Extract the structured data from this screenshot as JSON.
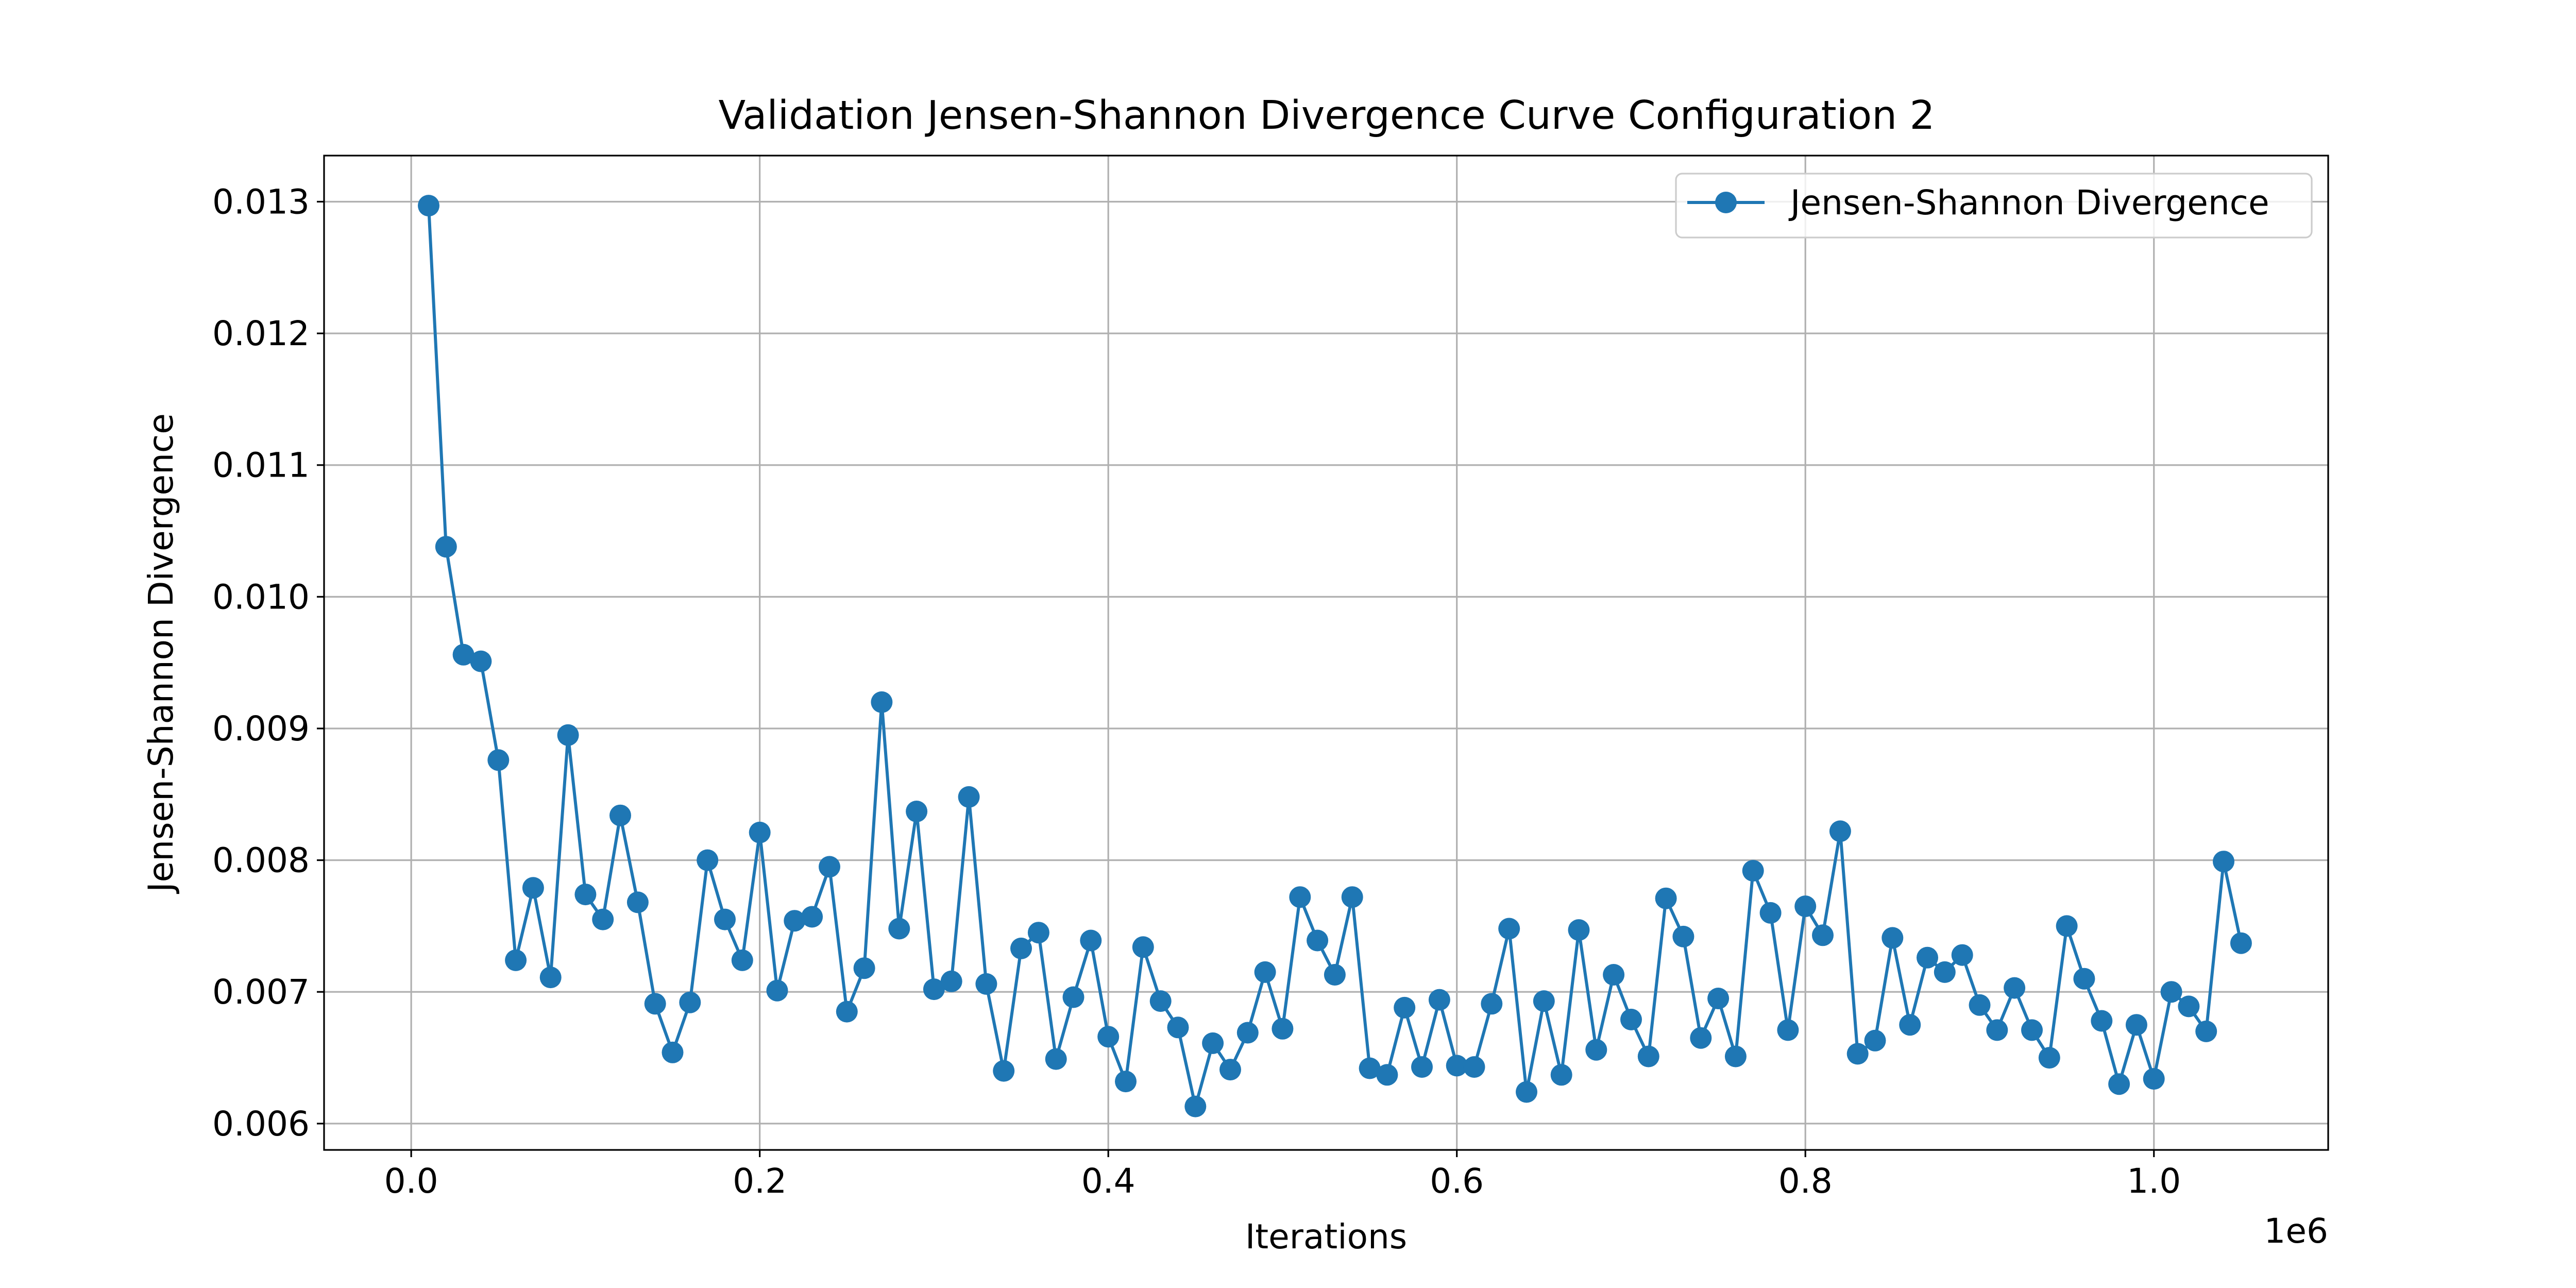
{
  "chart_data": {
    "type": "line",
    "title": "Validation Jensen-Shannon Divergence Curve Configuration 2",
    "xlabel": "Iterations",
    "ylabel": "Jensen-Shannon Divergence",
    "x_offset_label": "1e6",
    "xlim": [
      -50000,
      1100000
    ],
    "ylim": [
      0.0058,
      0.01335
    ],
    "x_ticks": [
      0.0,
      200000,
      400000,
      600000,
      800000,
      1000000
    ],
    "x_tick_labels": [
      "0.0",
      "0.2",
      "0.4",
      "0.6",
      "0.8",
      "1.0"
    ],
    "y_ticks": [
      0.006,
      0.007,
      0.008,
      0.009,
      0.01,
      0.011,
      0.012,
      0.013
    ],
    "y_tick_labels": [
      "0.006",
      "0.007",
      "0.008",
      "0.009",
      "0.010",
      "0.011",
      "0.012",
      "0.013"
    ],
    "grid": true,
    "legend_position": "top-right",
    "colors": {
      "series": "#1f77b4",
      "grid": "#b0b0b0",
      "frame": "#000000"
    },
    "series": [
      {
        "name": "Jensen-Shannon Divergence",
        "x": [
          10000,
          20000,
          30000,
          40000,
          50000,
          60000,
          70000,
          80000,
          90000,
          100000,
          110000,
          120000,
          130000,
          140000,
          150000,
          160000,
          170000,
          180000,
          190000,
          200000,
          210000,
          220000,
          230000,
          240000,
          250000,
          260000,
          270000,
          280000,
          290000,
          300000,
          310000,
          320000,
          330000,
          340000,
          350000,
          360000,
          370000,
          380000,
          390000,
          400000,
          410000,
          420000,
          430000,
          440000,
          450000,
          460000,
          470000,
          480000,
          490000,
          500000,
          510000,
          520000,
          530000,
          540000,
          550000,
          560000,
          570000,
          580000,
          590000,
          600000,
          610000,
          620000,
          630000,
          640000,
          650000,
          660000,
          670000,
          680000,
          690000,
          700000,
          710000,
          720000,
          730000,
          740000,
          750000,
          760000,
          770000,
          780000,
          790000,
          800000,
          810000,
          820000,
          830000,
          840000,
          850000,
          860000,
          870000,
          880000,
          890000,
          900000,
          910000,
          920000,
          930000,
          940000,
          950000,
          960000,
          970000,
          980000,
          990000,
          1000000,
          1010000,
          1020000,
          1030000,
          1040000,
          1050000
        ],
        "y": [
          0.01297,
          0.01038,
          0.00956,
          0.00951,
          0.00876,
          0.00724,
          0.00779,
          0.00711,
          0.00895,
          0.00774,
          0.00755,
          0.00834,
          0.00768,
          0.00691,
          0.00654,
          0.00692,
          0.008,
          0.00755,
          0.00724,
          0.00821,
          0.00701,
          0.00754,
          0.00757,
          0.00795,
          0.00685,
          0.00718,
          0.0092,
          0.00748,
          0.00837,
          0.00702,
          0.00708,
          0.00848,
          0.00706,
          0.0064,
          0.00733,
          0.00745,
          0.00649,
          0.00696,
          0.00739,
          0.00666,
          0.00632,
          0.00734,
          0.00693,
          0.00673,
          0.00613,
          0.00661,
          0.00641,
          0.00669,
          0.00715,
          0.00672,
          0.00772,
          0.00739,
          0.00713,
          0.00772,
          0.00642,
          0.00637,
          0.00688,
          0.00643,
          0.00694,
          0.00644,
          0.00643,
          0.00691,
          0.00748,
          0.00624,
          0.00693,
          0.00637,
          0.00747,
          0.00656,
          0.00713,
          0.00679,
          0.00651,
          0.00771,
          0.00742,
          0.00665,
          0.00695,
          0.00651,
          0.00792,
          0.0076,
          0.00671,
          0.00765,
          0.00743,
          0.00822,
          0.00653,
          0.00663,
          0.00741,
          0.00675,
          0.00726,
          0.00715,
          0.00728,
          0.0069,
          0.00671,
          0.00703,
          0.00671,
          0.0065,
          0.0075,
          0.0071,
          0.00678,
          0.0063,
          0.00675,
          0.00634,
          0.007,
          0.00689,
          0.0067,
          0.00799,
          0.00737
        ]
      }
    ]
  }
}
